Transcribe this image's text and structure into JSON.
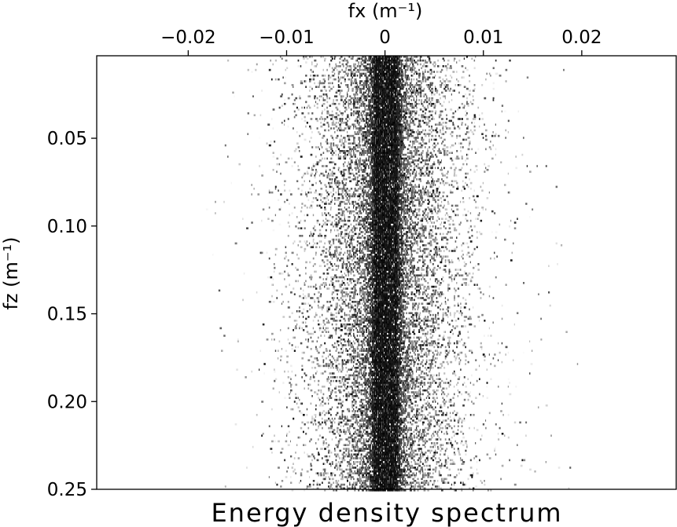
{
  "chart_data": {
    "type": "heatmap",
    "title": "Energy density spectrum",
    "xlabel": "fx (m⁻¹)",
    "ylabel": "fz (m⁻¹)",
    "x_axis_position": "top",
    "xlim": [
      -0.0293,
      0.0296
    ],
    "ylim": [
      0.003,
      0.25
    ],
    "x_ticks": [
      {
        "value": -0.02,
        "label": "−0.02"
      },
      {
        "value": -0.01,
        "label": "−0.01"
      },
      {
        "value": 0,
        "label": "0"
      },
      {
        "value": 0.01,
        "label": "0.01"
      },
      {
        "value": 0.02,
        "label": "0.02"
      }
    ],
    "y_ticks": [
      {
        "value": 0.05,
        "label": "0.05"
      },
      {
        "value": 0.1,
        "label": "0.10"
      },
      {
        "value": 0.15,
        "label": "0.15"
      },
      {
        "value": 0.2,
        "label": "0.20"
      },
      {
        "value": 0.25,
        "label": "0.25"
      }
    ],
    "colormap": "grayscale, white = low energy, black = high energy",
    "energy_profile": {
      "center_fx": 0.0,
      "core_half_width_fx": 0.001,
      "spread_half_width_fx": 0.0045,
      "max_extent_fx": 0.02
    },
    "grid": false,
    "legend": "none"
  }
}
